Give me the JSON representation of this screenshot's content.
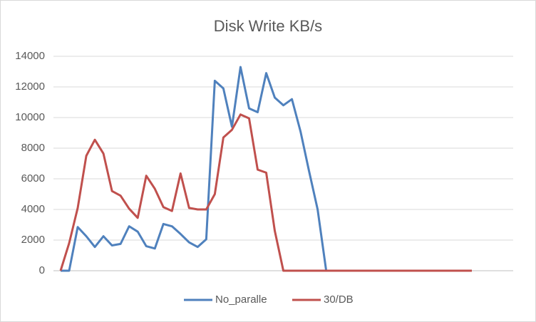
{
  "chart_data": {
    "type": "line",
    "title": "Disk Write KB/s",
    "series": [
      {
        "name": "No_paralle",
        "color": "#4f81bd",
        "values": [
          0,
          0,
          2850,
          2250,
          1550,
          2250,
          1650,
          1750,
          2900,
          2550,
          1600,
          1450,
          3050,
          2900,
          2400,
          1850,
          1550,
          2050,
          12400,
          11900,
          9400,
          13300,
          10600,
          10350,
          12900,
          11300,
          10800,
          11200,
          9100,
          6500,
          4000,
          0,
          0,
          0,
          0,
          0,
          0,
          0,
          0,
          0,
          0,
          0,
          0,
          0,
          0,
          0,
          0,
          0,
          0
        ]
      },
      {
        "name": "30/DB",
        "color": "#c0504d",
        "values": [
          0,
          1800,
          4100,
          7500,
          8550,
          7650,
          5200,
          4900,
          4050,
          3450,
          6200,
          5350,
          4150,
          3900,
          6350,
          4100,
          4000,
          4000,
          5000,
          8700,
          9200,
          10200,
          9950,
          6600,
          6400,
          2600,
          0,
          0,
          0,
          0,
          0,
          0,
          0,
          0,
          0,
          0,
          0,
          0,
          0,
          0,
          0,
          0,
          0,
          0,
          0,
          0,
          0,
          0,
          0
        ]
      }
    ],
    "ylim": [
      0,
      14000
    ],
    "yticks": [
      0,
      2000,
      4000,
      6000,
      8000,
      10000,
      12000,
      14000
    ],
    "grid": true,
    "legend": "bottom"
  }
}
